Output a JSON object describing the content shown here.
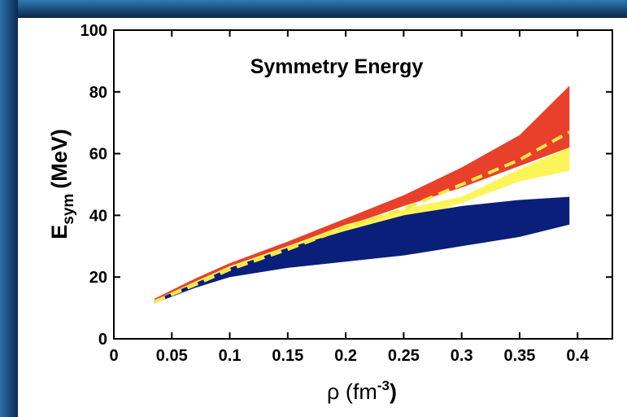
{
  "chart_data": {
    "type": "band",
    "title": "Symmetry Energy",
    "ylabel": {
      "main": "E",
      "sub": "sym",
      "unit": "(MeV)"
    },
    "xlabel": {
      "main": "ρ (fm",
      "sup": "-3",
      "end": ")"
    },
    "xlim": [
      0,
      0.43
    ],
    "ylim": [
      0,
      100
    ],
    "xticks": [
      0,
      0.05,
      0.1,
      0.15,
      0.2,
      0.25,
      0.3,
      0.35,
      0.4
    ],
    "yticks": [
      0,
      20,
      40,
      60,
      80,
      100
    ],
    "x": [
      0.035,
      0.07,
      0.1,
      0.15,
      0.2,
      0.25,
      0.3,
      0.35,
      0.393
    ],
    "bands": [
      {
        "color": "#e8402a",
        "upper": [
          13,
          19.5,
          24.5,
          31.5,
          39,
          46.5,
          55.5,
          66,
          82
        ],
        "lower": [
          12,
          18.5,
          23.5,
          30,
          36.5,
          43,
          49,
          56,
          62
        ]
      },
      {
        "color": "#fbf55a",
        "upper": [
          12.5,
          18.5,
          23.5,
          30,
          37,
          42,
          46,
          55,
          62
        ],
        "lower": [
          11.5,
          17,
          21.5,
          27,
          33,
          38,
          44,
          51,
          54.5
        ]
      },
      {
        "color": "#0a1f7a",
        "upper": [
          12.5,
          18,
          23,
          29.5,
          35,
          40,
          43,
          45,
          46
        ],
        "lower": [
          11.5,
          16.5,
          20,
          23,
          25,
          27,
          30,
          33,
          37
        ]
      }
    ],
    "lines": [
      {
        "color": "#f6e84a",
        "values": [
          12,
          17.5,
          22.5,
          29,
          36,
          42,
          50,
          58,
          67
        ]
      }
    ]
  }
}
